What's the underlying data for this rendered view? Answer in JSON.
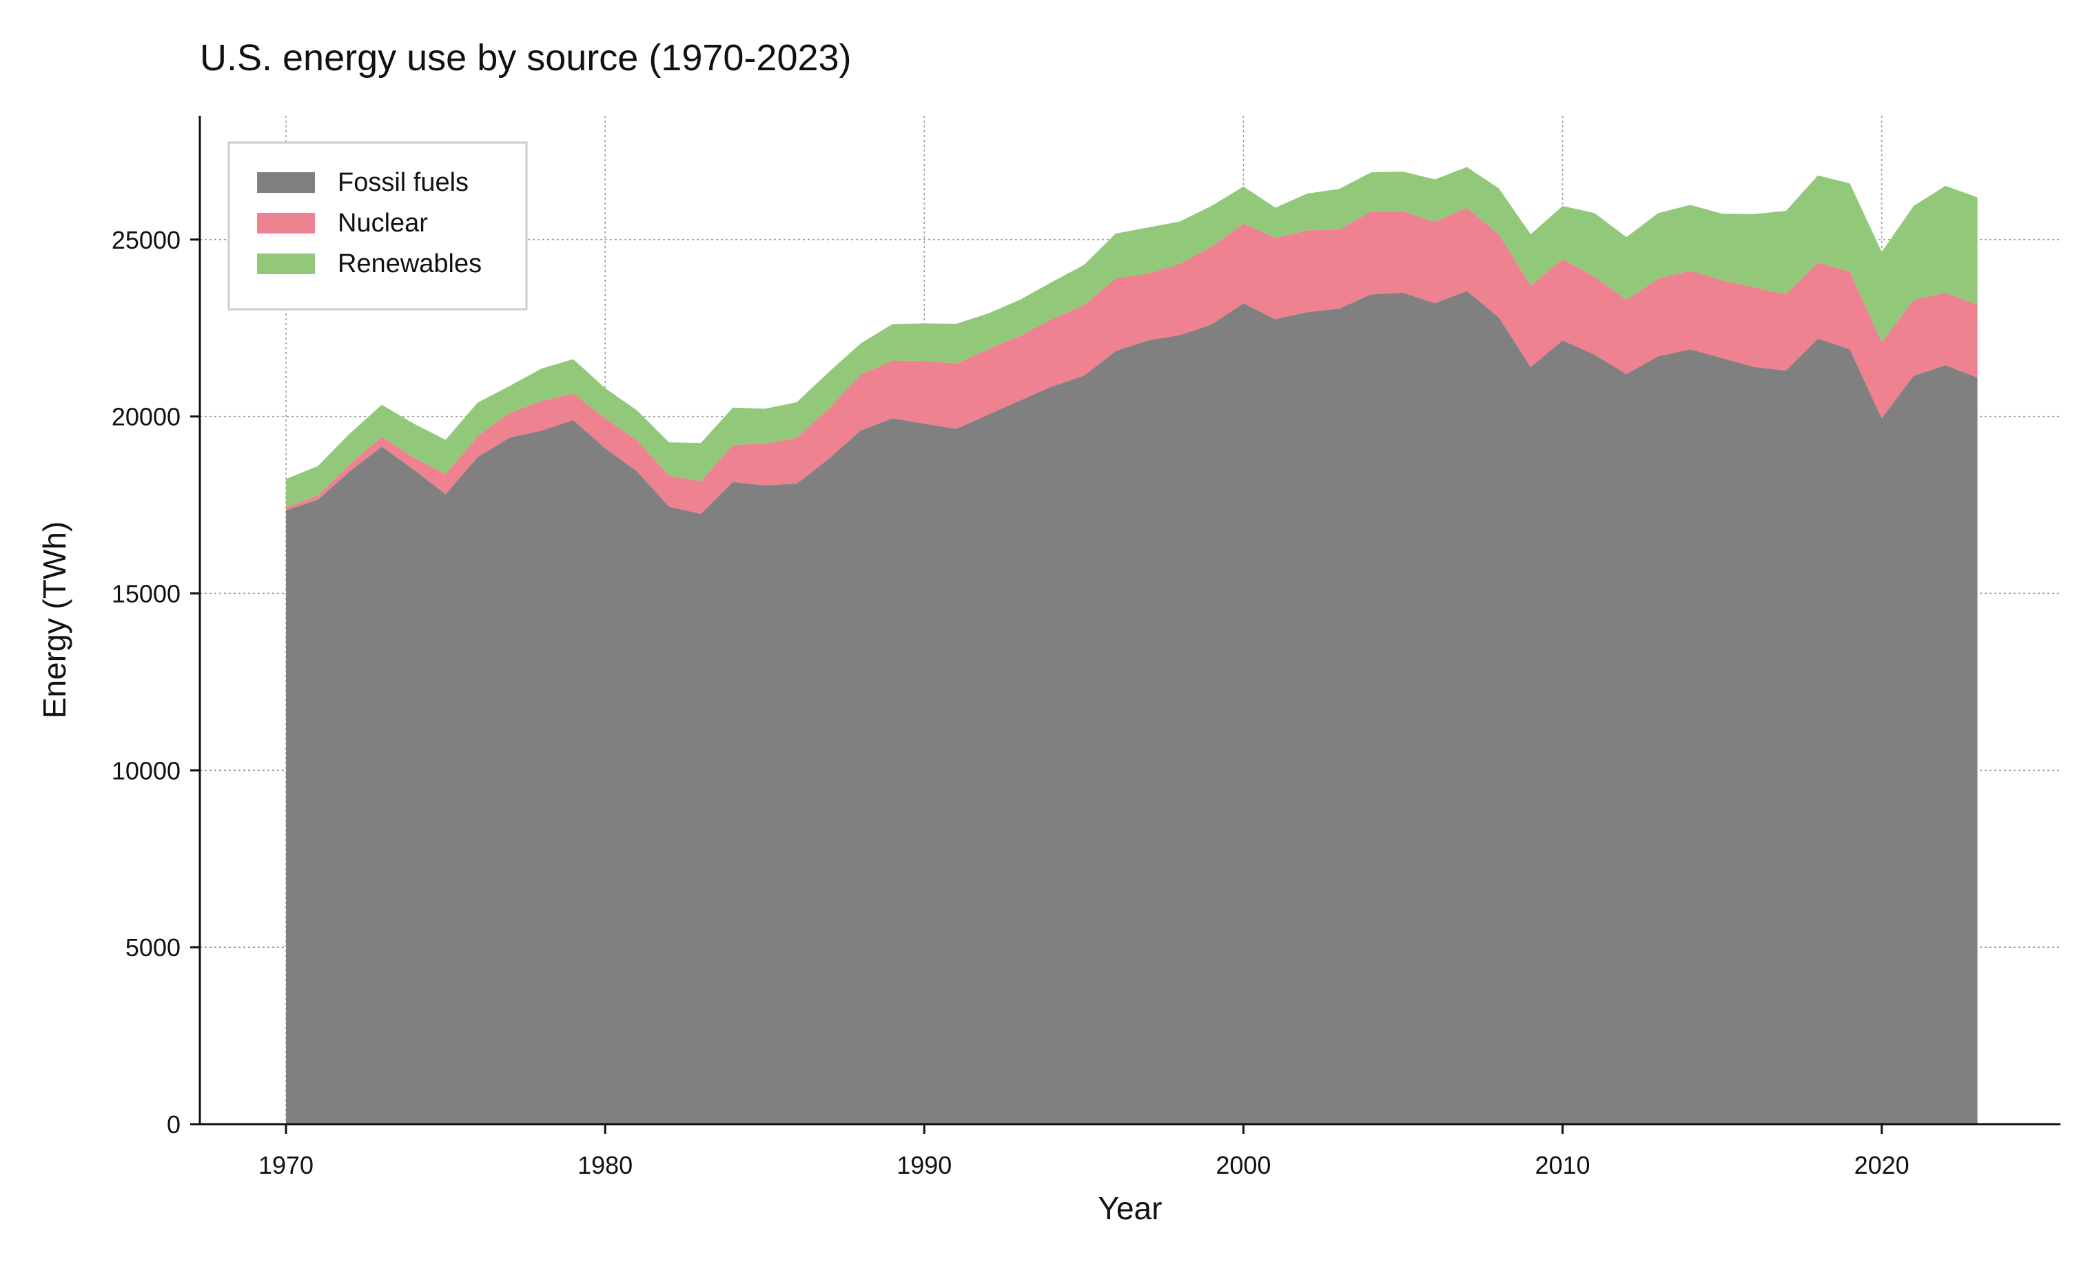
{
  "chart_data": {
    "type": "area",
    "stacked": true,
    "title": "U.S. energy use by source (1970-2023)",
    "xlabel": "Year",
    "ylabel": "Energy (TWh)",
    "xlim": [
      1967.3,
      2025.6
    ],
    "ylim": [
      0,
      28500
    ],
    "xticks": [
      1970,
      1980,
      1990,
      2000,
      2010,
      2020
    ],
    "yticks": [
      0,
      5000,
      10000,
      15000,
      20000,
      25000
    ],
    "grid": true,
    "legend_position": "top-left",
    "x": [
      1970,
      1971,
      1972,
      1973,
      1974,
      1975,
      1976,
      1977,
      1978,
      1979,
      1980,
      1981,
      1982,
      1983,
      1984,
      1985,
      1986,
      1987,
      1988,
      1989,
      1990,
      1991,
      1992,
      1993,
      1994,
      1995,
      1996,
      1997,
      1998,
      1999,
      2000,
      2001,
      2002,
      2003,
      2004,
      2005,
      2006,
      2007,
      2008,
      2009,
      2010,
      2011,
      2012,
      2013,
      2014,
      2015,
      2016,
      2017,
      2018,
      2019,
      2020,
      2021,
      2022,
      2023
    ],
    "series": [
      {
        "name": "Fossil fuels",
        "color": "#808080",
        "values": [
          17350,
          17650,
          18450,
          19150,
          18500,
          17800,
          18850,
          19400,
          19600,
          19900,
          19100,
          18450,
          17450,
          17250,
          18150,
          18050,
          18100,
          18800,
          19600,
          19950,
          19800,
          19650,
          20050,
          20450,
          20850,
          21150,
          21850,
          22150,
          22300,
          22600,
          23200,
          22750,
          22950,
          23050,
          23450,
          23500,
          23200,
          23550,
          22800,
          21400,
          22150,
          21750,
          21200,
          21700,
          21900,
          21650,
          21400,
          21300,
          22200,
          21900,
          19950,
          21150,
          21450,
          21100
        ]
      },
      {
        "name": "Nuclear",
        "color": "#ee8290",
        "values": [
          80,
          120,
          200,
          280,
          340,
          570,
          590,
          700,
          840,
          750,
          850,
          870,
          880,
          920,
          1050,
          1180,
          1300,
          1420,
          1580,
          1630,
          1770,
          1850,
          1850,
          1830,
          1900,
          2000,
          2050,
          1890,
          2010,
          2200,
          2250,
          2300,
          2310,
          2230,
          2350,
          2300,
          2300,
          2350,
          2350,
          2300,
          2300,
          2200,
          2100,
          2200,
          2220,
          2200,
          2250,
          2150,
          2150,
          2200,
          2150,
          2150,
          2050,
          2050
        ]
      },
      {
        "name": "Renewables",
        "color": "#92c87a",
        "values": [
          800,
          830,
          870,
          900,
          960,
          970,
          950,
          760,
          910,
          970,
          850,
          850,
          940,
          1080,
          1050,
          990,
          1000,
          1030,
          880,
          1030,
          1060,
          1120,
          1010,
          1020,
          1050,
          1130,
          1270,
          1300,
          1200,
          1150,
          1050,
          850,
          1040,
          1150,
          1100,
          1120,
          1200,
          1150,
          1300,
          1450,
          1500,
          1800,
          1770,
          1850,
          1860,
          1880,
          2070,
          2360,
          2460,
          2490,
          2550,
          2650,
          3020,
          3040
        ]
      }
    ]
  }
}
